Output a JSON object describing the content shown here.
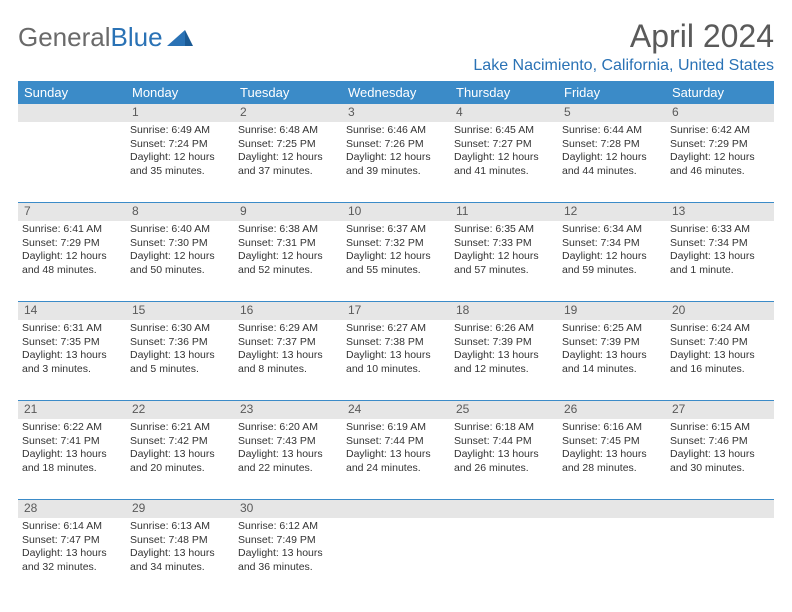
{
  "logo": {
    "general": "General",
    "blue": "Blue"
  },
  "title": "April 2024",
  "location": "Lake Nacimiento, California, United States",
  "weekdays": [
    "Sunday",
    "Monday",
    "Tuesday",
    "Wednesday",
    "Thursday",
    "Friday",
    "Saturday"
  ],
  "colors": {
    "header_bar": "#3b8bc8",
    "brand_blue": "#2a72b5",
    "daynum_bg": "#e6e6e6",
    "text": "#333333",
    "muted": "#5a5a5a"
  },
  "weeks": [
    {
      "nums": [
        "",
        "1",
        "2",
        "3",
        "4",
        "5",
        "6"
      ],
      "cells": [
        {
          "sunrise": "",
          "sunset": "",
          "daylight1": "",
          "daylight2": ""
        },
        {
          "sunrise": "Sunrise: 6:49 AM",
          "sunset": "Sunset: 7:24 PM",
          "daylight1": "Daylight: 12 hours",
          "daylight2": "and 35 minutes."
        },
        {
          "sunrise": "Sunrise: 6:48 AM",
          "sunset": "Sunset: 7:25 PM",
          "daylight1": "Daylight: 12 hours",
          "daylight2": "and 37 minutes."
        },
        {
          "sunrise": "Sunrise: 6:46 AM",
          "sunset": "Sunset: 7:26 PM",
          "daylight1": "Daylight: 12 hours",
          "daylight2": "and 39 minutes."
        },
        {
          "sunrise": "Sunrise: 6:45 AM",
          "sunset": "Sunset: 7:27 PM",
          "daylight1": "Daylight: 12 hours",
          "daylight2": "and 41 minutes."
        },
        {
          "sunrise": "Sunrise: 6:44 AM",
          "sunset": "Sunset: 7:28 PM",
          "daylight1": "Daylight: 12 hours",
          "daylight2": "and 44 minutes."
        },
        {
          "sunrise": "Sunrise: 6:42 AM",
          "sunset": "Sunset: 7:29 PM",
          "daylight1": "Daylight: 12 hours",
          "daylight2": "and 46 minutes."
        }
      ]
    },
    {
      "nums": [
        "7",
        "8",
        "9",
        "10",
        "11",
        "12",
        "13"
      ],
      "cells": [
        {
          "sunrise": "Sunrise: 6:41 AM",
          "sunset": "Sunset: 7:29 PM",
          "daylight1": "Daylight: 12 hours",
          "daylight2": "and 48 minutes."
        },
        {
          "sunrise": "Sunrise: 6:40 AM",
          "sunset": "Sunset: 7:30 PM",
          "daylight1": "Daylight: 12 hours",
          "daylight2": "and 50 minutes."
        },
        {
          "sunrise": "Sunrise: 6:38 AM",
          "sunset": "Sunset: 7:31 PM",
          "daylight1": "Daylight: 12 hours",
          "daylight2": "and 52 minutes."
        },
        {
          "sunrise": "Sunrise: 6:37 AM",
          "sunset": "Sunset: 7:32 PM",
          "daylight1": "Daylight: 12 hours",
          "daylight2": "and 55 minutes."
        },
        {
          "sunrise": "Sunrise: 6:35 AM",
          "sunset": "Sunset: 7:33 PM",
          "daylight1": "Daylight: 12 hours",
          "daylight2": "and 57 minutes."
        },
        {
          "sunrise": "Sunrise: 6:34 AM",
          "sunset": "Sunset: 7:34 PM",
          "daylight1": "Daylight: 12 hours",
          "daylight2": "and 59 minutes."
        },
        {
          "sunrise": "Sunrise: 6:33 AM",
          "sunset": "Sunset: 7:34 PM",
          "daylight1": "Daylight: 13 hours",
          "daylight2": "and 1 minute."
        }
      ]
    },
    {
      "nums": [
        "14",
        "15",
        "16",
        "17",
        "18",
        "19",
        "20"
      ],
      "cells": [
        {
          "sunrise": "Sunrise: 6:31 AM",
          "sunset": "Sunset: 7:35 PM",
          "daylight1": "Daylight: 13 hours",
          "daylight2": "and 3 minutes."
        },
        {
          "sunrise": "Sunrise: 6:30 AM",
          "sunset": "Sunset: 7:36 PM",
          "daylight1": "Daylight: 13 hours",
          "daylight2": "and 5 minutes."
        },
        {
          "sunrise": "Sunrise: 6:29 AM",
          "sunset": "Sunset: 7:37 PM",
          "daylight1": "Daylight: 13 hours",
          "daylight2": "and 8 minutes."
        },
        {
          "sunrise": "Sunrise: 6:27 AM",
          "sunset": "Sunset: 7:38 PM",
          "daylight1": "Daylight: 13 hours",
          "daylight2": "and 10 minutes."
        },
        {
          "sunrise": "Sunrise: 6:26 AM",
          "sunset": "Sunset: 7:39 PM",
          "daylight1": "Daylight: 13 hours",
          "daylight2": "and 12 minutes."
        },
        {
          "sunrise": "Sunrise: 6:25 AM",
          "sunset": "Sunset: 7:39 PM",
          "daylight1": "Daylight: 13 hours",
          "daylight2": "and 14 minutes."
        },
        {
          "sunrise": "Sunrise: 6:24 AM",
          "sunset": "Sunset: 7:40 PM",
          "daylight1": "Daylight: 13 hours",
          "daylight2": "and 16 minutes."
        }
      ]
    },
    {
      "nums": [
        "21",
        "22",
        "23",
        "24",
        "25",
        "26",
        "27"
      ],
      "cells": [
        {
          "sunrise": "Sunrise: 6:22 AM",
          "sunset": "Sunset: 7:41 PM",
          "daylight1": "Daylight: 13 hours",
          "daylight2": "and 18 minutes."
        },
        {
          "sunrise": "Sunrise: 6:21 AM",
          "sunset": "Sunset: 7:42 PM",
          "daylight1": "Daylight: 13 hours",
          "daylight2": "and 20 minutes."
        },
        {
          "sunrise": "Sunrise: 6:20 AM",
          "sunset": "Sunset: 7:43 PM",
          "daylight1": "Daylight: 13 hours",
          "daylight2": "and 22 minutes."
        },
        {
          "sunrise": "Sunrise: 6:19 AM",
          "sunset": "Sunset: 7:44 PM",
          "daylight1": "Daylight: 13 hours",
          "daylight2": "and 24 minutes."
        },
        {
          "sunrise": "Sunrise: 6:18 AM",
          "sunset": "Sunset: 7:44 PM",
          "daylight1": "Daylight: 13 hours",
          "daylight2": "and 26 minutes."
        },
        {
          "sunrise": "Sunrise: 6:16 AM",
          "sunset": "Sunset: 7:45 PM",
          "daylight1": "Daylight: 13 hours",
          "daylight2": "and 28 minutes."
        },
        {
          "sunrise": "Sunrise: 6:15 AM",
          "sunset": "Sunset: 7:46 PM",
          "daylight1": "Daylight: 13 hours",
          "daylight2": "and 30 minutes."
        }
      ]
    },
    {
      "nums": [
        "28",
        "29",
        "30",
        "",
        "",
        "",
        ""
      ],
      "cells": [
        {
          "sunrise": "Sunrise: 6:14 AM",
          "sunset": "Sunset: 7:47 PM",
          "daylight1": "Daylight: 13 hours",
          "daylight2": "and 32 minutes."
        },
        {
          "sunrise": "Sunrise: 6:13 AM",
          "sunset": "Sunset: 7:48 PM",
          "daylight1": "Daylight: 13 hours",
          "daylight2": "and 34 minutes."
        },
        {
          "sunrise": "Sunrise: 6:12 AM",
          "sunset": "Sunset: 7:49 PM",
          "daylight1": "Daylight: 13 hours",
          "daylight2": "and 36 minutes."
        },
        {
          "sunrise": "",
          "sunset": "",
          "daylight1": "",
          "daylight2": ""
        },
        {
          "sunrise": "",
          "sunset": "",
          "daylight1": "",
          "daylight2": ""
        },
        {
          "sunrise": "",
          "sunset": "",
          "daylight1": "",
          "daylight2": ""
        },
        {
          "sunrise": "",
          "sunset": "",
          "daylight1": "",
          "daylight2": ""
        }
      ]
    }
  ]
}
